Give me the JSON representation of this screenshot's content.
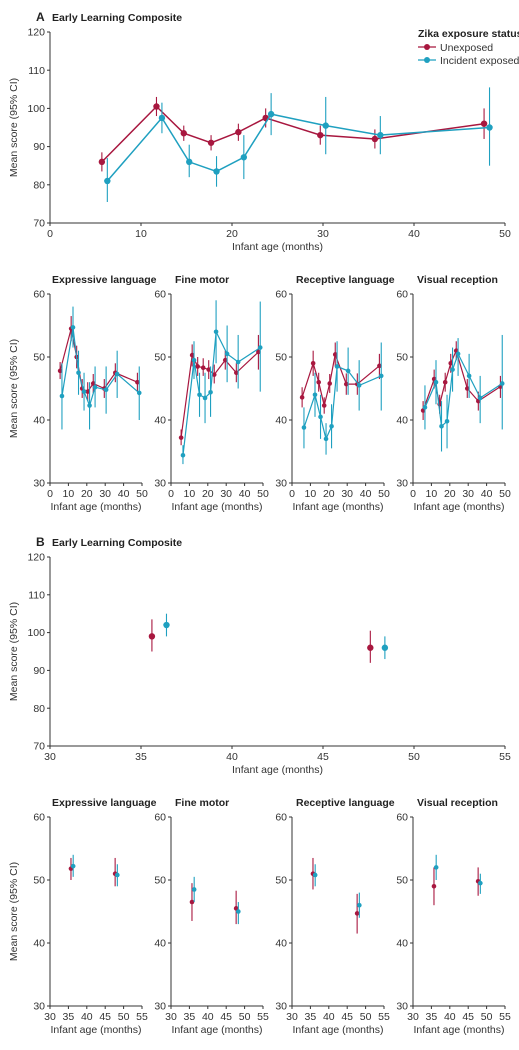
{
  "colors": {
    "unexposed": "#a8173f",
    "exposed": "#1fa0c0"
  },
  "panel_a_label": "A",
  "panel_b_label": "B",
  "legend": {
    "title": "Zika exposure status",
    "items": [
      "Unexposed",
      "Incident exposed"
    ]
  },
  "chart_data": [
    {
      "id": "A-composite",
      "type": "line",
      "title": "Early Learning Composite",
      "xlabel": "Infant age (months)",
      "ylabel": "Mean score (95% CI)",
      "xlim": [
        0,
        50
      ],
      "ylim": [
        70,
        120
      ],
      "xticks": [
        0,
        10,
        20,
        30,
        40,
        50
      ],
      "yticks": [
        70,
        80,
        90,
        100,
        110,
        120
      ],
      "series": [
        {
          "name": "Unexposed",
          "points": [
            [
              5.7,
              86,
              83.5,
              88.5
            ],
            [
              11.7,
              100.5,
              98,
              103
            ],
            [
              14.7,
              93.5,
              91.5,
              95.5
            ],
            [
              17.7,
              91,
              89,
              93
            ],
            [
              20.7,
              93.8,
              91.5,
              96
            ],
            [
              23.7,
              97.5,
              95,
              100
            ],
            [
              29.7,
              93,
              90.5,
              95.5
            ],
            [
              35.7,
              92,
              89.5,
              94.5
            ],
            [
              47.7,
              96,
              92,
              100
            ]
          ]
        },
        {
          "name": "Incident exposed",
          "points": [
            [
              6.3,
              81,
              75.5,
              87
            ],
            [
              12.3,
              97.5,
              93.5,
              101.5
            ],
            [
              15.3,
              86,
              82,
              90.5
            ],
            [
              18.3,
              83.5,
              79.5,
              87.5
            ],
            [
              21.3,
              87.2,
              81.5,
              93
            ],
            [
              24.3,
              98.5,
              93,
              104
            ],
            [
              30.3,
              95.5,
              88,
              103
            ],
            [
              36.3,
              93,
              88,
              98
            ],
            [
              48.3,
              95,
              85,
              105.5
            ]
          ]
        }
      ]
    },
    {
      "id": "A-expressive",
      "type": "line",
      "title": "Expressive language",
      "xlabel": "Infant age (months)",
      "ylabel": "Mean score (95% CI)",
      "xlim": [
        0,
        50
      ],
      "ylim": [
        30,
        60
      ],
      "xticks": [
        0,
        10,
        20,
        30,
        40,
        50
      ],
      "yticks": [
        30,
        40,
        50,
        60
      ],
      "series": [
        {
          "name": "Unexposed",
          "points": [
            [
              5.5,
              47.8,
              46.5,
              49.2
            ],
            [
              11.5,
              54.5,
              52.5,
              56.5
            ],
            [
              14.5,
              50,
              48.2,
              51.8
            ],
            [
              17.5,
              45,
              43.5,
              46.5
            ],
            [
              20.5,
              44.5,
              43,
              46
            ],
            [
              23.5,
              45.8,
              44.3,
              47.3
            ],
            [
              29.5,
              45,
              43.5,
              46.5
            ],
            [
              35.5,
              47.5,
              46,
              49
            ],
            [
              47.5,
              46,
              44.5,
              47.5
            ]
          ]
        },
        {
          "name": "Incident exposed",
          "points": [
            [
              6.5,
              43.8,
              38.5,
              49
            ],
            [
              12.5,
              54.7,
              51.5,
              58
            ],
            [
              15.5,
              47.5,
              44,
              51
            ],
            [
              18.5,
              44.5,
              41.5,
              47.5
            ],
            [
              21.5,
              42.3,
              38.5,
              46
            ],
            [
              24.5,
              45.2,
              42,
              48.5
            ],
            [
              30.5,
              44.8,
              41,
              48.5
            ],
            [
              36.5,
              47.3,
              43.5,
              51
            ],
            [
              48.5,
              44.3,
              40,
              48.5
            ]
          ]
        }
      ]
    },
    {
      "id": "A-fine",
      "type": "line",
      "title": "Fine motor",
      "xlabel": "Infant age (months)",
      "ylabel": "Mean score (95% CI)",
      "xlim": [
        0,
        50
      ],
      "ylim": [
        30,
        60
      ],
      "xticks": [
        0,
        10,
        20,
        30,
        40,
        50
      ],
      "yticks": [
        30,
        40,
        50,
        60
      ],
      "series": [
        {
          "name": "Unexposed",
          "points": [
            [
              5.5,
              37.2,
              36,
              38.5
            ],
            [
              11.5,
              50.3,
              48.5,
              52
            ],
            [
              14.5,
              48.5,
              47,
              50
            ],
            [
              17.5,
              48.3,
              47,
              49.8
            ],
            [
              20.5,
              48,
              46.5,
              49.5
            ],
            [
              23.5,
              47.2,
              45.8,
              48.8
            ],
            [
              29.5,
              49.5,
              48,
              51
            ],
            [
              35.5,
              47.5,
              46,
              49
            ],
            [
              47.5,
              50.8,
              48,
              53.5
            ]
          ]
        },
        {
          "name": "Incident exposed",
          "points": [
            [
              6.5,
              34.4,
              33,
              36
            ],
            [
              12.5,
              49.5,
              46.5,
              52.5
            ],
            [
              15.5,
              44,
              40.5,
              47.5
            ],
            [
              18.5,
              43.5,
              39.5,
              47.5
            ],
            [
              21.5,
              44.4,
              40.5,
              48.5
            ],
            [
              24.5,
              54,
              49,
              59
            ],
            [
              30.5,
              50.5,
              46,
              55
            ],
            [
              36.5,
              49.2,
              45,
              53.5
            ],
            [
              48.5,
              51.5,
              44.5,
              58.8
            ]
          ]
        }
      ]
    },
    {
      "id": "A-receptive",
      "type": "line",
      "title": "Receptive language",
      "xlabel": "Infant age (months)",
      "ylabel": "Mean score (95% CI)",
      "xlim": [
        0,
        50
      ],
      "ylim": [
        30,
        60
      ],
      "xticks": [
        0,
        10,
        20,
        30,
        40,
        50
      ],
      "yticks": [
        30,
        40,
        50,
        60
      ],
      "series": [
        {
          "name": "Unexposed",
          "points": [
            [
              5.5,
              43.6,
              42,
              45.2
            ],
            [
              11.5,
              49,
              47,
              51
            ],
            [
              14.5,
              46,
              44.5,
              47.5
            ],
            [
              17.5,
              42.3,
              41,
              43.6
            ],
            [
              20.5,
              45.8,
              44.3,
              47.3
            ],
            [
              23.5,
              50.4,
              48.5,
              52.3
            ],
            [
              29.5,
              45.7,
              44,
              47.4
            ],
            [
              35.5,
              45.7,
              44,
              47.4
            ],
            [
              47.5,
              48.6,
              46.5,
              50.5
            ]
          ]
        },
        {
          "name": "Incident exposed",
          "points": [
            [
              6.5,
              38.8,
              35.5,
              42
            ],
            [
              12.5,
              44,
              40.5,
              47.5
            ],
            [
              15.5,
              40.5,
              37,
              44
            ],
            [
              18.5,
              37,
              34.5,
              39.5
            ],
            [
              21.5,
              39,
              35.5,
              42.5
            ],
            [
              24.5,
              48.5,
              44.5,
              52.5
            ],
            [
              30.5,
              47.8,
              44,
              51.5
            ],
            [
              36.5,
              45.5,
              41.5,
              49.5
            ],
            [
              48.5,
              47,
              41.5,
              52.3
            ]
          ]
        }
      ]
    },
    {
      "id": "A-visual",
      "type": "line",
      "title": "Visual reception",
      "xlabel": "Infant age (months)",
      "ylabel": "Mean score (95% CI)",
      "xlim": [
        0,
        50
      ],
      "ylim": [
        30,
        60
      ],
      "xticks": [
        0,
        10,
        20,
        30,
        40,
        50
      ],
      "yticks": [
        30,
        40,
        50,
        60
      ],
      "series": [
        {
          "name": "Unexposed",
          "points": [
            [
              5.5,
              41.5,
              40,
              43
            ],
            [
              11.5,
              46.5,
              45,
              48
            ],
            [
              14.5,
              42.5,
              41,
              44
            ],
            [
              17.5,
              46,
              44.5,
              47.5
            ],
            [
              20.5,
              49,
              47.5,
              50.5
            ],
            [
              23.5,
              51,
              49.5,
              52.5
            ],
            [
              29.5,
              45,
              43.5,
              46.5
            ],
            [
              35.5,
              43,
              41.5,
              44.5
            ],
            [
              47.5,
              45.3,
              43.5,
              47
            ]
          ]
        },
        {
          "name": "Incident exposed",
          "points": [
            [
              6.5,
              42,
              38.5,
              45.5
            ],
            [
              12.5,
              46,
              42.5,
              49.5
            ],
            [
              15.5,
              39,
              35,
              43
            ],
            [
              18.5,
              39.8,
              35.5,
              44
            ],
            [
              21.5,
              48,
              44.5,
              51.5
            ],
            [
              24.5,
              50.5,
              47,
              53
            ],
            [
              30.5,
              47,
              43.5,
              50.5
            ],
            [
              36.5,
              43.5,
              39.5,
              47
            ],
            [
              48.5,
              45.8,
              38.5,
              53.5
            ]
          ]
        }
      ]
    },
    {
      "id": "B-composite",
      "type": "scatter",
      "title": "Early Learning Composite",
      "xlabel": "Infant age (months)",
      "ylabel": "Mean score (95% CI)",
      "xlim": [
        30,
        55
      ],
      "ylim": [
        70,
        120
      ],
      "xticks": [
        30,
        35,
        40,
        45,
        50,
        55
      ],
      "yticks": [
        70,
        80,
        90,
        100,
        110,
        120
      ],
      "series": [
        {
          "name": "Unexposed",
          "points": [
            [
              35.6,
              99,
              95,
              103.5
            ],
            [
              47.6,
              96,
              92,
              100.5
            ]
          ]
        },
        {
          "name": "Incident exposed",
          "points": [
            [
              36.4,
              102,
              99,
              105
            ],
            [
              48.4,
              96,
              93,
              99
            ]
          ]
        }
      ]
    },
    {
      "id": "B-expressive",
      "type": "scatter",
      "title": "Expressive language",
      "xlabel": "Infant age (months)",
      "ylabel": "Mean score (95% CI)",
      "xlim": [
        30,
        55
      ],
      "ylim": [
        30,
        60
      ],
      "xticks": [
        30,
        35,
        40,
        45,
        50,
        55
      ],
      "yticks": [
        30,
        40,
        50,
        60
      ],
      "series": [
        {
          "name": "Unexposed",
          "points": [
            [
              35.7,
              51.8,
              50,
              53.5
            ],
            [
              47.7,
              51,
              49,
              53.5
            ]
          ]
        },
        {
          "name": "Incident exposed",
          "points": [
            [
              36.3,
              52.2,
              50.5,
              54
            ],
            [
              48.3,
              50.8,
              49,
              52.5
            ]
          ]
        }
      ]
    },
    {
      "id": "B-fine",
      "type": "scatter",
      "title": "Fine motor",
      "xlabel": "Infant age (months)",
      "ylabel": "Mean score (95% CI)",
      "xlim": [
        30,
        55
      ],
      "ylim": [
        30,
        60
      ],
      "xticks": [
        30,
        35,
        40,
        45,
        50,
        55
      ],
      "yticks": [
        30,
        40,
        50,
        60
      ],
      "series": [
        {
          "name": "Unexposed",
          "points": [
            [
              35.7,
              46.5,
              43.5,
              49.5
            ],
            [
              47.7,
              45.5,
              43,
              48.3
            ]
          ]
        },
        {
          "name": "Incident exposed",
          "points": [
            [
              36.3,
              48.5,
              46.5,
              50.5
            ],
            [
              48.3,
              45,
              43,
              46.5
            ]
          ]
        }
      ]
    },
    {
      "id": "B-receptive",
      "type": "scatter",
      "title": "Receptive language",
      "xlabel": "Infant age (months)",
      "ylabel": "Mean score (95% CI)",
      "xlim": [
        30,
        55
      ],
      "ylim": [
        30,
        60
      ],
      "xticks": [
        30,
        35,
        40,
        45,
        50,
        55
      ],
      "yticks": [
        30,
        40,
        50,
        60
      ],
      "series": [
        {
          "name": "Unexposed",
          "points": [
            [
              35.7,
              51,
              48.5,
              53.5
            ],
            [
              47.7,
              44.7,
              41.5,
              47.8
            ]
          ]
        },
        {
          "name": "Incident exposed",
          "points": [
            [
              36.3,
              50.8,
              49,
              52.5
            ],
            [
              48.3,
              46,
              44,
              48
            ]
          ]
        }
      ]
    },
    {
      "id": "B-visual",
      "type": "scatter",
      "title": "Visual reception",
      "xlabel": "Infant age (months)",
      "ylabel": "Mean score (95% CI)",
      "xlim": [
        30,
        55
      ],
      "ylim": [
        30,
        60
      ],
      "xticks": [
        30,
        35,
        40,
        45,
        50,
        55
      ],
      "yticks": [
        30,
        40,
        50,
        60
      ],
      "series": [
        {
          "name": "Unexposed",
          "points": [
            [
              35.7,
              49,
              46,
              52
            ],
            [
              47.7,
              49.8,
              47.5,
              52
            ]
          ]
        },
        {
          "name": "Incident exposed",
          "points": [
            [
              36.3,
              52,
              50,
              54
            ],
            [
              48.3,
              49.5,
              47.8,
              51
            ]
          ]
        }
      ]
    }
  ]
}
